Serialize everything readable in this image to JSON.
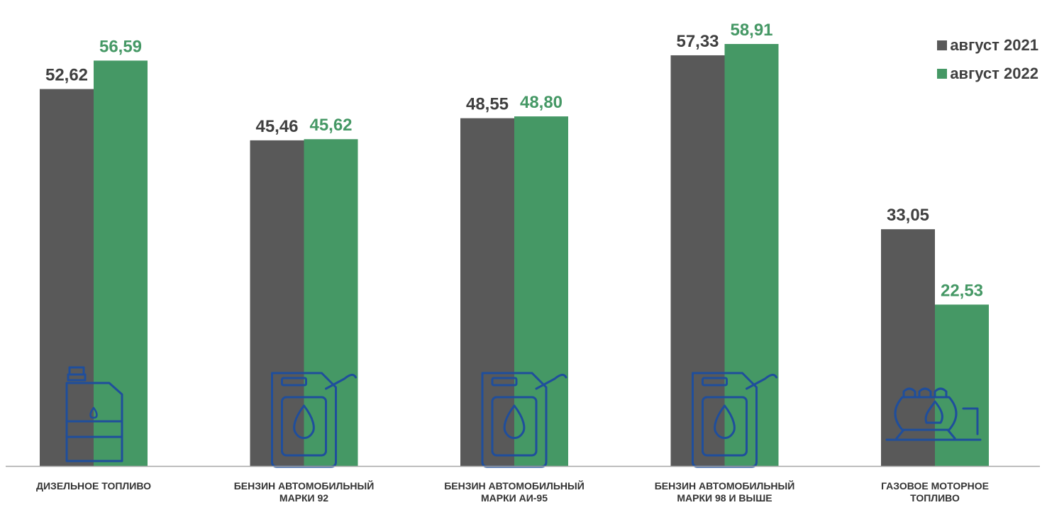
{
  "colors": {
    "series_2021": "#595959",
    "series_2022": "#459865",
    "icon": "#1f4e9c",
    "axis": "#a6a6a6",
    "label_2021": "#404040",
    "label_2022": "#459865"
  },
  "legend": [
    {
      "label": "август 2021",
      "color": "#595959"
    },
    {
      "label": "август 2022",
      "color": "#459865"
    }
  ],
  "chart_data": {
    "type": "bar",
    "categories": [
      [
        "ДИЗЕЛЬНОЕ ТОПЛИВО"
      ],
      [
        "БЕНЗИН АВТОМОБИЛЬНЫЙ",
        "МАРКИ 92"
      ],
      [
        "БЕНЗИН АВТОМОБИЛЬНЫЙ",
        "МАРКИ АИ-95"
      ],
      [
        "БЕНЗИН АВТОМОБИЛЬНЫЙ",
        "МАРКИ 98 И ВЫШЕ"
      ],
      [
        "ГАЗОВОЕ МОТОРНОЕ",
        "ТОПЛИВО"
      ]
    ],
    "series": [
      {
        "name": "август 2021",
        "values": [
          52.62,
          45.46,
          48.55,
          57.33,
          33.05
        ],
        "labels": [
          "52,62",
          "45,46",
          "48,55",
          "57,33",
          "33,05"
        ]
      },
      {
        "name": "август 2022",
        "values": [
          56.59,
          45.62,
          48.8,
          58.91,
          22.53
        ],
        "labels": [
          "56,59",
          "45,62",
          "48,80",
          "58,91",
          "22,53"
        ]
      }
    ],
    "icons": [
      "fuel-canister-icon",
      "jerrycan-icon",
      "jerrycan-icon",
      "jerrycan-icon",
      "gas-tank-icon"
    ],
    "ylim": [
      0,
      60
    ],
    "legend_position": "top-right",
    "grid": false
  }
}
